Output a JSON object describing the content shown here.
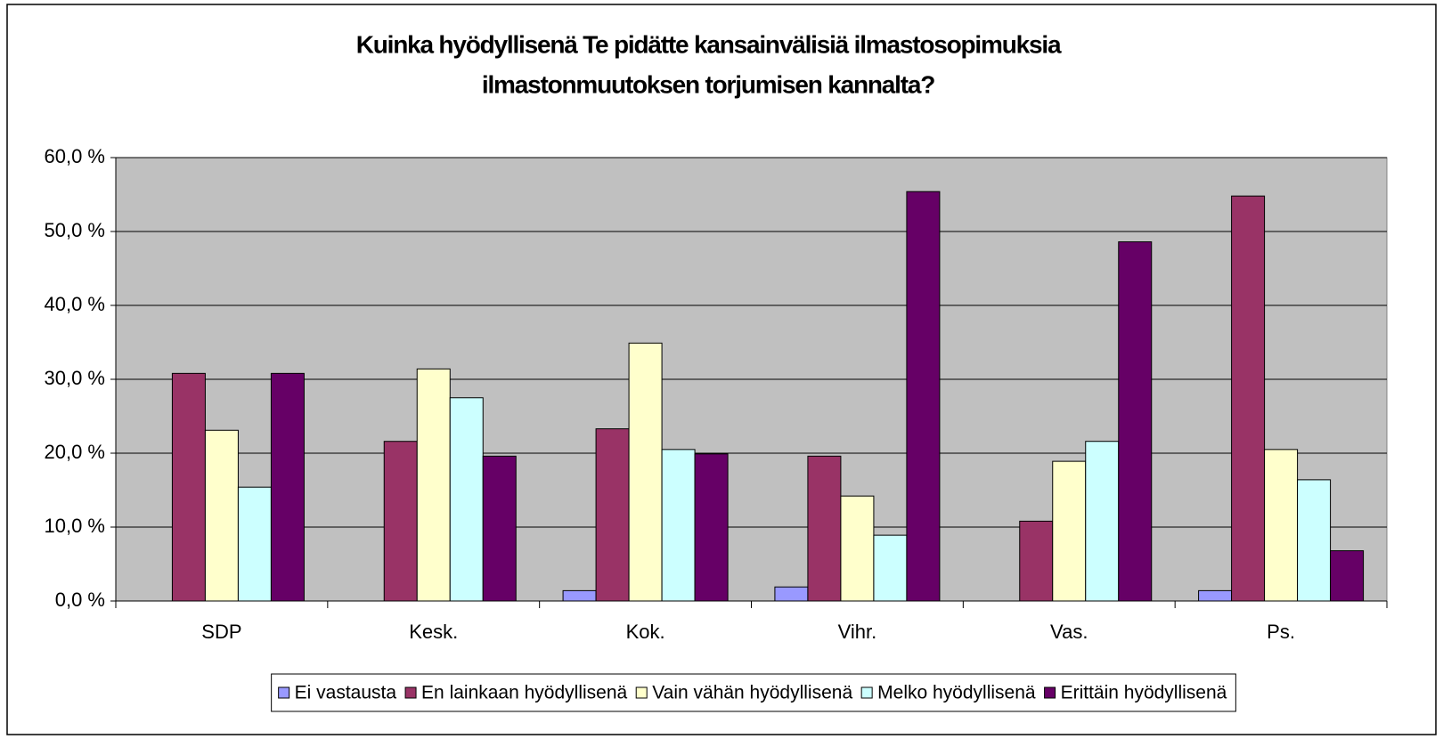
{
  "chart_data": {
    "type": "bar",
    "title": [
      "Kuinka hyödyllisenä Te pidätte kansainvälisiä ilmastosopimuksia",
      "ilmastonmuutoksen torjumisen kannalta?"
    ],
    "categories": [
      "SDP",
      "Kesk.",
      "Kok.",
      "Vihr.",
      "Vas.",
      "Ps."
    ],
    "series": [
      {
        "name": "Ei vastausta",
        "color": "#9999ff",
        "values": [
          0,
          0,
          1.4,
          1.9,
          0,
          1.4
        ]
      },
      {
        "name": "En lainkaan hyödyllisenä",
        "color": "#993366",
        "values": [
          30.8,
          21.6,
          23.3,
          19.6,
          10.8,
          54.8
        ]
      },
      {
        "name": "Vain vähän hyödyllisenä",
        "color": "#ffffcc",
        "values": [
          23.1,
          31.4,
          34.9,
          14.2,
          18.9,
          20.5
        ]
      },
      {
        "name": "Melko hyödyllisenä",
        "color": "#ccffff",
        "values": [
          15.4,
          27.5,
          20.5,
          8.9,
          21.6,
          16.4
        ]
      },
      {
        "name": "Erittäin hyödyllisenä",
        "color": "#660066",
        "values": [
          30.8,
          19.6,
          19.9,
          55.4,
          48.6,
          6.8
        ]
      }
    ],
    "ylim": [
      0,
      60
    ],
    "yticks": [
      {
        "value": 0,
        "label": "0,0 %"
      },
      {
        "value": 10,
        "label": "10,0 %"
      },
      {
        "value": 20,
        "label": "20,0 %"
      },
      {
        "value": 30,
        "label": "30,0 %"
      },
      {
        "value": 40,
        "label": "40,0 %"
      },
      {
        "value": 50,
        "label": "50,0 %"
      },
      {
        "value": 60,
        "label": "60,0 %"
      }
    ],
    "grid": true,
    "legend": "bottom"
  }
}
